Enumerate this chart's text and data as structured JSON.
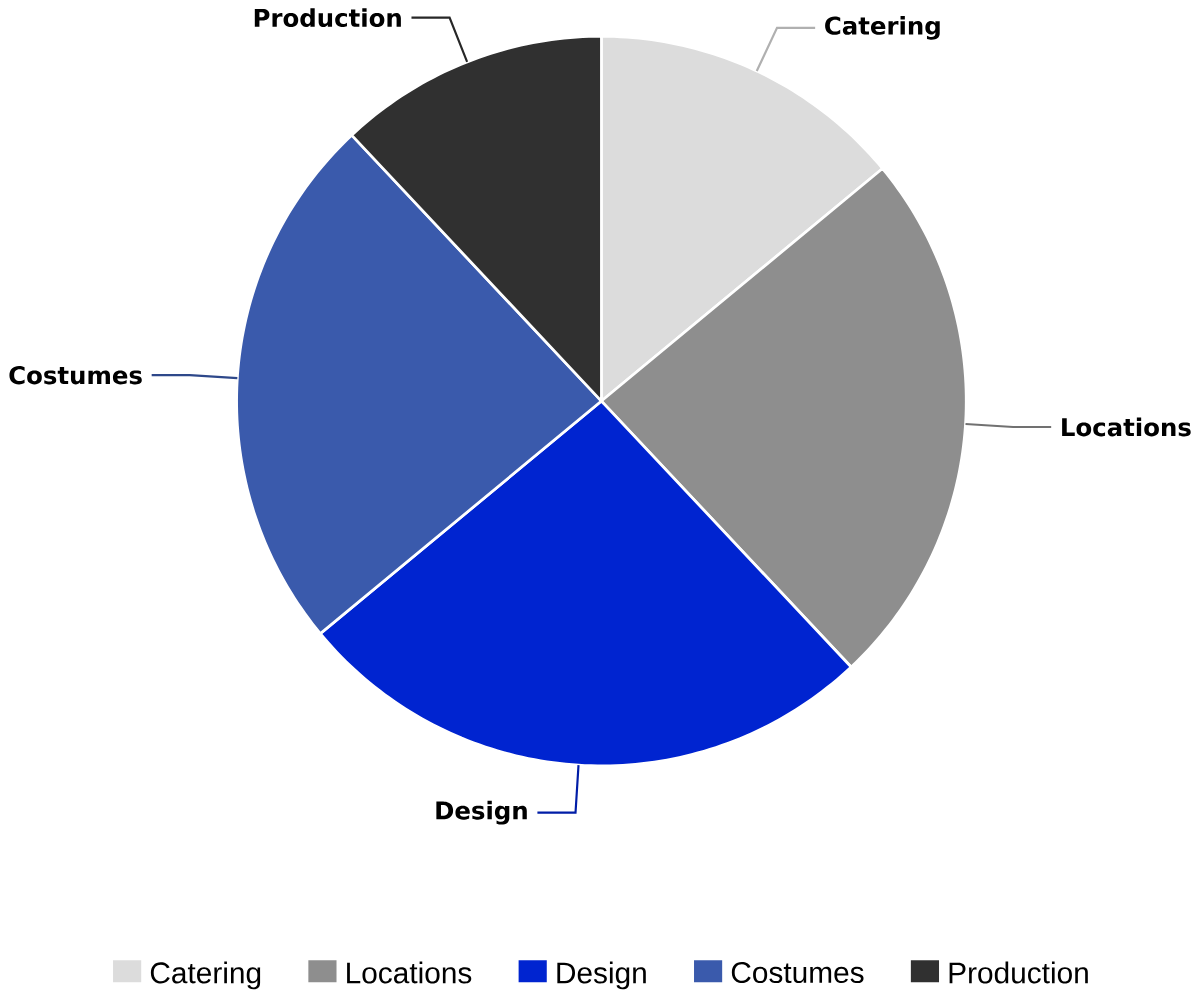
{
  "chart_data": {
    "type": "pie",
    "categories": [
      "Catering",
      "Locations",
      "Design",
      "Costumes",
      "Production"
    ],
    "values": [
      14,
      24,
      26,
      24,
      12
    ],
    "colors": [
      "#dcdcdc",
      "#8e8e8e",
      "#0024d0",
      "#3a5aac",
      "#303030"
    ],
    "legend": "bottom"
  }
}
